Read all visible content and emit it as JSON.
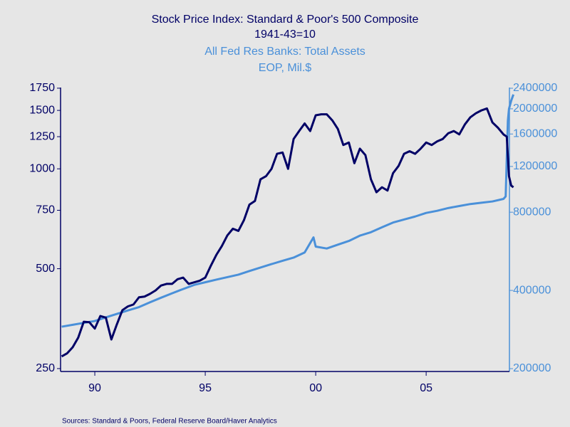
{
  "chart_data": {
    "type": "line",
    "log_scale": true,
    "y2_log_scale": true,
    "background": "#e6e6e6",
    "series": [
      {
        "name": "Stock Price Index: Standard & Poor's 500 Composite",
        "units": "1941-43=10",
        "color": "#000066",
        "axis": "y",
        "x": [
          1988.5,
          1988.75,
          1989,
          1989.25,
          1989.5,
          1989.75,
          1990,
          1990.25,
          1990.5,
          1990.75,
          1991,
          1991.25,
          1991.5,
          1991.75,
          1992,
          1992.25,
          1992.5,
          1992.75,
          1993,
          1993.25,
          1993.5,
          1993.75,
          1994,
          1994.25,
          1994.5,
          1994.75,
          1995,
          1995.25,
          1995.5,
          1995.75,
          1996,
          1996.25,
          1996.5,
          1996.75,
          1997,
          1997.25,
          1997.5,
          1997.75,
          1998,
          1998.25,
          1998.5,
          1998.75,
          1999,
          1999.25,
          1999.5,
          1999.75,
          2000,
          2000.25,
          2000.5,
          2000.75,
          2001,
          2001.25,
          2001.5,
          2001.75,
          2002,
          2002.25,
          2002.5,
          2002.75,
          2003,
          2003.25,
          2003.5,
          2003.75,
          2004,
          2004.25,
          2004.5,
          2004.75,
          2005,
          2005.25,
          2005.5,
          2005.75,
          2006,
          2006.25,
          2006.5,
          2006.75,
          2007,
          2007.25,
          2007.5,
          2007.75,
          2008,
          2008.25,
          2008.5,
          2008.65,
          2008.75,
          2008.85,
          2008.95
        ],
        "values": [
          272,
          278,
          290,
          310,
          346,
          345,
          330,
          360,
          356,
          306,
          340,
          375,
          385,
          390,
          410,
          412,
          420,
          430,
          445,
          450,
          450,
          465,
          470,
          450,
          455,
          460,
          470,
          510,
          550,
          585,
          630,
          660,
          650,
          700,
          780,
          800,
          930,
          950,
          1000,
          1110,
          1120,
          1000,
          1230,
          1300,
          1370,
          1300,
          1450,
          1460,
          1460,
          1400,
          1320,
          1180,
          1200,
          1040,
          1150,
          1100,
          930,
          850,
          880,
          860,
          970,
          1020,
          1110,
          1130,
          1110,
          1150,
          1200,
          1180,
          1210,
          1230,
          1280,
          1300,
          1270,
          1360,
          1430,
          1470,
          1500,
          1520,
          1380,
          1330,
          1270,
          1250,
          950,
          890,
          880
        ]
      },
      {
        "name": "All Fed Res Banks: Total Assets",
        "units": "EOP, Mil.$",
        "color": "#4a90d9",
        "axis": "y2",
        "x": [
          1988.5,
          1989,
          1989.5,
          1990,
          1990.5,
          1991,
          1991.5,
          1992,
          1992.5,
          1993,
          1993.5,
          1994,
          1994.5,
          1995,
          1995.5,
          1996,
          1996.5,
          1997,
          1997.5,
          1998,
          1998.5,
          1999,
          1999.5,
          1999.9,
          2000,
          2000.5,
          2001,
          2001.5,
          2002,
          2002.5,
          2003,
          2003.5,
          2004,
          2004.5,
          2005,
          2005.5,
          2006,
          2006.5,
          2007,
          2007.5,
          2008,
          2008.5,
          2008.6,
          2008.65,
          2008.7,
          2008.75,
          2008.85,
          2008.95
        ],
        "values": [
          290000,
          295000,
          300000,
          305000,
          315000,
          325000,
          335000,
          345000,
          360000,
          375000,
          390000,
          405000,
          420000,
          430000,
          440000,
          450000,
          460000,
          475000,
          490000,
          505000,
          520000,
          535000,
          560000,
          640000,
          590000,
          580000,
          600000,
          620000,
          650000,
          670000,
          700000,
          730000,
          750000,
          770000,
          795000,
          810000,
          830000,
          845000,
          860000,
          870000,
          880000,
          900000,
          920000,
          1300000,
          1800000,
          2000000,
          2150000,
          2270000
        ]
      }
    ],
    "xlim": [
      1988.45,
      2008.77
    ],
    "xticks": [
      {
        "value": 1990,
        "label": "90"
      },
      {
        "value": 1995,
        "label": "95"
      },
      {
        "value": 2000,
        "label": "00"
      },
      {
        "value": 2005,
        "label": "05"
      }
    ],
    "ylim": [
      245,
      1758
    ],
    "yticks": [
      250,
      500,
      750,
      1000,
      1250,
      1500,
      1750
    ],
    "y2lim": [
      195000,
      2415000
    ],
    "y2ticks": [
      200000,
      400000,
      800000,
      1200000,
      1600000,
      2000000,
      2400000
    ],
    "source": "Sources:  Standard & Poors, Federal Reserve Board/Haver Analytics"
  }
}
